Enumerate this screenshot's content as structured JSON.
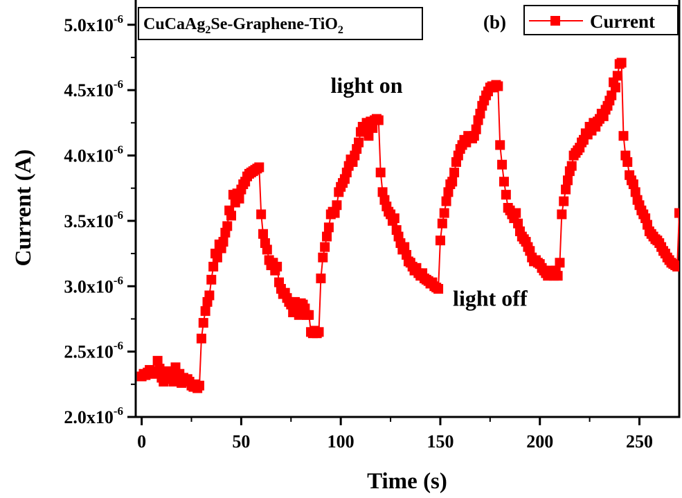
{
  "chart_data": {
    "type": "line",
    "xlabel": "Time (s)",
    "ylabel": "Current (A)",
    "xlim": [
      -3,
      270
    ],
    "ylim": [
      2e-06,
      5.2e-06
    ],
    "x_ticks": [
      0,
      50,
      100,
      150,
      200,
      250
    ],
    "y_ticks": [
      {
        "value": 2e-06,
        "mantissa": "2.0x10",
        "exp": "-6"
      },
      {
        "value": 2.5e-06,
        "mantissa": "2.5x10",
        "exp": "-6"
      },
      {
        "value": 3e-06,
        "mantissa": "3.0x10",
        "exp": "-6"
      },
      {
        "value": 3.5e-06,
        "mantissa": "3.5x10",
        "exp": "-6"
      },
      {
        "value": 4e-06,
        "mantissa": "4.0x10",
        "exp": "-6"
      },
      {
        "value": 4.5e-06,
        "mantissa": "4.5x10",
        "exp": "-6"
      },
      {
        "value": 5e-06,
        "mantissa": "5.0x10",
        "exp": "-6"
      }
    ],
    "grid": false,
    "legend_position": "top-right",
    "series": [
      {
        "name": "Current",
        "color": "#ff0000",
        "marker": "square",
        "x": [
          0,
          1,
          2,
          3,
          4,
          5,
          6,
          7,
          8,
          9,
          10,
          11,
          12,
          13,
          14,
          15,
          16,
          17,
          18,
          19,
          20,
          21,
          22,
          23,
          24,
          25,
          26,
          27,
          28,
          29,
          30,
          31,
          32,
          33,
          34,
          35,
          36,
          37,
          38,
          39,
          40,
          41,
          42,
          43,
          44,
          45,
          46,
          47,
          48,
          49,
          50,
          51,
          52,
          53,
          54,
          55,
          56,
          57,
          58,
          59,
          60,
          61,
          62,
          63,
          64,
          65,
          66,
          67,
          68,
          69,
          70,
          71,
          72,
          73,
          74,
          75,
          76,
          77,
          78,
          79,
          80,
          81,
          82,
          83,
          84,
          85,
          86,
          87,
          88,
          89,
          90,
          91,
          92,
          93,
          94,
          95,
          96,
          97,
          98,
          99,
          100,
          101,
          102,
          103,
          104,
          105,
          106,
          107,
          108,
          109,
          110,
          111,
          112,
          113,
          114,
          115,
          116,
          117,
          118,
          119,
          120,
          121,
          122,
          123,
          124,
          125,
          126,
          127,
          128,
          129,
          130,
          131,
          132,
          133,
          134,
          135,
          136,
          137,
          138,
          139,
          140,
          141,
          142,
          143,
          144,
          145,
          146,
          147,
          148,
          149,
          150,
          151,
          152,
          153,
          154,
          155,
          156,
          157,
          158,
          159,
          160,
          161,
          162,
          163,
          164,
          165,
          166,
          167,
          168,
          169,
          170,
          171,
          172,
          173,
          174,
          175,
          176,
          177,
          178,
          179,
          180,
          181,
          182,
          183,
          184,
          185,
          186,
          187,
          188,
          189,
          190,
          191,
          192,
          193,
          194,
          195,
          196,
          197,
          198,
          199,
          200,
          201,
          202,
          203,
          204,
          205,
          206,
          207,
          208,
          209,
          210,
          211,
          212,
          213,
          214,
          215,
          216,
          217,
          218,
          219,
          220,
          221,
          222,
          223,
          224,
          225,
          226,
          227,
          228,
          229,
          230,
          231,
          232,
          233,
          234,
          235,
          236,
          237,
          238,
          239,
          240,
          241,
          242,
          243,
          244,
          245,
          246,
          247,
          248,
          249,
          250,
          251,
          252,
          253,
          254,
          255,
          256,
          257,
          258,
          259,
          260,
          261,
          262,
          263,
          264,
          265,
          266,
          267,
          268,
          269,
          270
        ],
        "y": [
          2.31e-06,
          2.33e-06,
          2.32e-06,
          2.34e-06,
          2.36e-06,
          2.33e-06,
          2.35e-06,
          2.33e-06,
          2.43e-06,
          2.37e-06,
          2.3e-06,
          2.27e-06,
          2.33e-06,
          2.35e-06,
          2.29e-06,
          2.32e-06,
          2.27e-06,
          2.38e-06,
          2.29e-06,
          2.33e-06,
          2.26e-06,
          2.3e-06,
          2.28e-06,
          2.29e-06,
          2.27e-06,
          2.24e-06,
          2.23e-06,
          2.25e-06,
          2.22e-06,
          2.24e-06,
          2.6e-06,
          2.72e-06,
          2.81e-06,
          2.88e-06,
          2.93e-06,
          3.05e-06,
          3.15e-06,
          3.25e-06,
          3.22e-06,
          3.32e-06,
          3.29e-06,
          3.34e-06,
          3.41e-06,
          3.46e-06,
          3.58e-06,
          3.54e-06,
          3.7e-06,
          3.64e-06,
          3.71e-06,
          3.67e-06,
          3.74e-06,
          3.78e-06,
          3.8e-06,
          3.84e-06,
          3.86e-06,
          3.87e-06,
          3.88e-06,
          3.89e-06,
          3.9e-06,
          3.91e-06,
          3.55e-06,
          3.4e-06,
          3.33e-06,
          3.28e-06,
          3.2e-06,
          3.16e-06,
          3.18e-06,
          3.12e-06,
          3.15e-06,
          3.03e-06,
          2.98e-06,
          2.94e-06,
          2.95e-06,
          2.91e-06,
          2.88e-06,
          2.86e-06,
          2.8e-06,
          2.88e-06,
          2.85e-06,
          2.78e-06,
          2.87e-06,
          2.86e-06,
          2.83e-06,
          2.78e-06,
          2.78e-06,
          2.65e-06,
          2.64e-06,
          2.66e-06,
          2.64e-06,
          2.65e-06,
          3.06e-06,
          3.22e-06,
          3.3e-06,
          3.38e-06,
          3.45e-06,
          3.55e-06,
          3.57e-06,
          3.56e-06,
          3.62e-06,
          3.72e-06,
          3.76e-06,
          3.79e-06,
          3.82e-06,
          3.87e-06,
          3.92e-06,
          3.97e-06,
          3.95e-06,
          4e-06,
          4.05e-06,
          4.1e-06,
          4.18e-06,
          4.22e-06,
          4.19e-06,
          4.25e-06,
          4.15e-06,
          4.26e-06,
          4.21e-06,
          4.27e-06,
          4.28e-06,
          4.27e-06,
          3.87e-06,
          3.72e-06,
          3.66e-06,
          3.61e-06,
          3.57e-06,
          3.55e-06,
          3.5e-06,
          3.52e-06,
          3.43e-06,
          3.38e-06,
          3.33e-06,
          3.28e-06,
          3.3e-06,
          3.24e-06,
          3.19e-06,
          3.18e-06,
          3.15e-06,
          3.12e-06,
          3.14e-06,
          3.1e-06,
          3.08e-06,
          3.1e-06,
          3.06e-06,
          3.05e-06,
          3.04e-06,
          3.02e-06,
          3.03e-06,
          3e-06,
          2.99e-06,
          2.98e-06,
          3.35e-06,
          3.48e-06,
          3.56e-06,
          3.65e-06,
          3.72e-06,
          3.78e-06,
          3.8e-06,
          3.87e-06,
          3.95e-06,
          4e-06,
          4.05e-06,
          4.08e-06,
          4.12e-06,
          4.1e-06,
          4.15e-06,
          4.14e-06,
          4.13e-06,
          4.15e-06,
          4.2e-06,
          4.27e-06,
          4.32e-06,
          4.38e-06,
          4.42e-06,
          4.46e-06,
          4.49e-06,
          4.52e-06,
          4.53e-06,
          4.52e-06,
          4.54e-06,
          4.53e-06,
          4.08e-06,
          3.93e-06,
          3.8e-06,
          3.7e-06,
          3.6e-06,
          3.58e-06,
          3.55e-06,
          3.52e-06,
          3.56e-06,
          3.48e-06,
          3.42e-06,
          3.38e-06,
          3.36e-06,
          3.34e-06,
          3.3e-06,
          3.27e-06,
          3.22e-06,
          3.19e-06,
          3.2e-06,
          3.18e-06,
          3.17e-06,
          3.14e-06,
          3.12e-06,
          3.1e-06,
          3.08e-06,
          3.12e-06,
          3.1e-06,
          3.08e-06,
          3.12e-06,
          3.08e-06,
          3.18e-06,
          3.55e-06,
          3.65e-06,
          3.74e-06,
          3.81e-06,
          3.88e-06,
          3.92e-06,
          4e-06,
          4.02e-06,
          4.04e-06,
          4.06e-06,
          4.1e-06,
          4.12e-06,
          4.17e-06,
          4.16e-06,
          4.22e-06,
          4.19e-06,
          4.25e-06,
          4.22e-06,
          4.26e-06,
          4.28e-06,
          4.32e-06,
          4.3e-06,
          4.35e-06,
          4.38e-06,
          4.42e-06,
          4.46e-06,
          4.56e-06,
          4.52e-06,
          4.61e-06,
          4.7e-06,
          4.71e-06,
          4.15e-06,
          4e-06,
          3.95e-06,
          3.85e-06,
          3.81e-06,
          3.78e-06,
          3.72e-06,
          3.66e-06,
          3.62e-06,
          3.58e-06,
          3.55e-06,
          3.52e-06,
          3.47e-06,
          3.42e-06,
          3.4e-06,
          3.38e-06,
          3.36e-06,
          3.35e-06,
          3.33e-06,
          3.3e-06,
          3.27e-06,
          3.25e-06,
          3.22e-06,
          3.2e-06,
          3.18e-06,
          3.17e-06,
          3.16e-06,
          3.15e-06,
          3.56e-06
        ]
      }
    ],
    "annotations": [
      {
        "text": "light on",
        "x": 113,
        "y": 4.48e-06
      },
      {
        "text": "light off",
        "x": 175,
        "y": 2.85e-06
      }
    ],
    "sample_label": {
      "prefix": "CuCaAg",
      "subscript1": "2",
      "middle": "Se-Graphene-TiO",
      "subscript2": "2"
    },
    "panel_label": "(b)",
    "legend_label": "Current"
  }
}
